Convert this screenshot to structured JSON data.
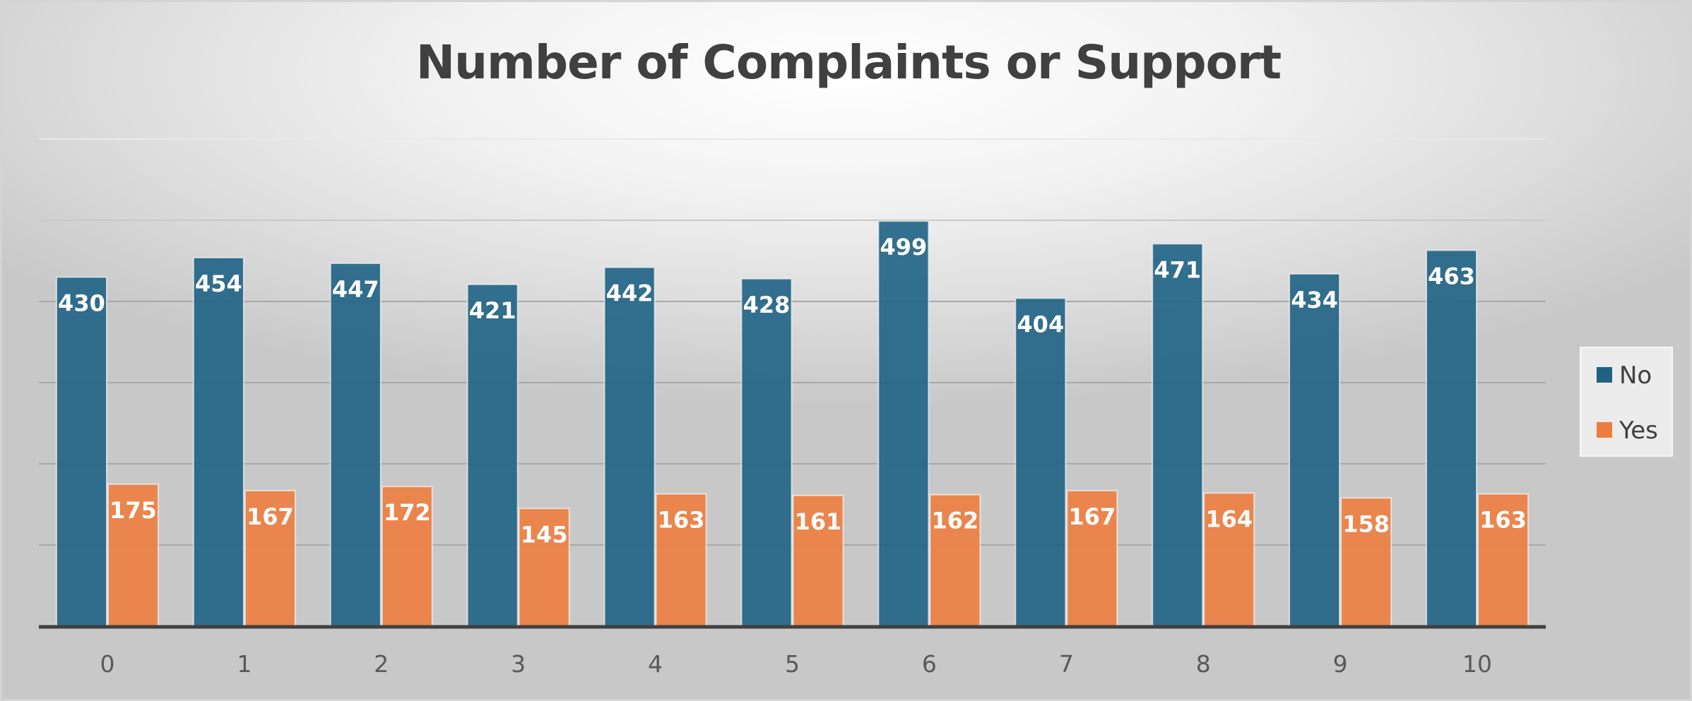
{
  "chart_data": {
    "type": "bar",
    "title": "Number of Complaints or Support",
    "xlabel": "",
    "ylabel": "",
    "categories": [
      "0",
      "1",
      "2",
      "3",
      "4",
      "5",
      "6",
      "7",
      "8",
      "9",
      "10"
    ],
    "series": [
      {
        "name": "No",
        "color": "#1f6284",
        "values": [
          430,
          454,
          447,
          421,
          442,
          428,
          499,
          404,
          471,
          434,
          463
        ]
      },
      {
        "name": "Yes",
        "color": "#ed7d3f",
        "values": [
          175,
          167,
          172,
          145,
          163,
          161,
          162,
          167,
          164,
          158,
          163
        ]
      }
    ],
    "ylim": [
      0,
      600
    ],
    "y_gridline_step": 100,
    "y_tick_labels_visible": false,
    "data_labels": true,
    "grid": true,
    "legend_position": "right"
  }
}
